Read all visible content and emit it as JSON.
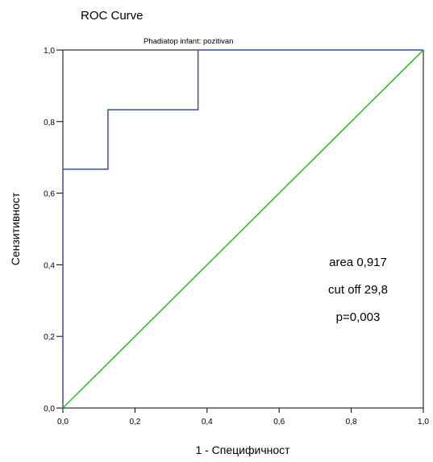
{
  "chart_data": {
    "type": "line",
    "title": "ROC Curve",
    "subtitle": "Phadiatop infant: pozitivan",
    "xlabel": "1 - Специфичност",
    "ylabel": "Сензитивност",
    "xlim": [
      0,
      1
    ],
    "ylim": [
      0,
      1
    ],
    "x_ticks": [
      "0,0",
      "0,2",
      "0,4",
      "0,6",
      "0,8",
      "1,0"
    ],
    "y_ticks": [
      "0,0",
      "0,2",
      "0,4",
      "0,6",
      "0,8",
      "1,0"
    ],
    "grid": false,
    "series": [
      {
        "color": "#3b4fa0",
        "points": [
          [
            0,
            0
          ],
          [
            0,
            0.667
          ],
          [
            0.125,
            0.667
          ],
          [
            0.125,
            0.833
          ],
          [
            0.375,
            0.833
          ],
          [
            0.375,
            1.0
          ],
          [
            1.0,
            1.0
          ]
        ]
      },
      {
        "color": "#2db52d",
        "points": [
          [
            0,
            0
          ],
          [
            1,
            1
          ]
        ]
      }
    ],
    "annotations": [
      "area 0,917",
      "cut off 29,8",
      "p=0,003"
    ]
  }
}
